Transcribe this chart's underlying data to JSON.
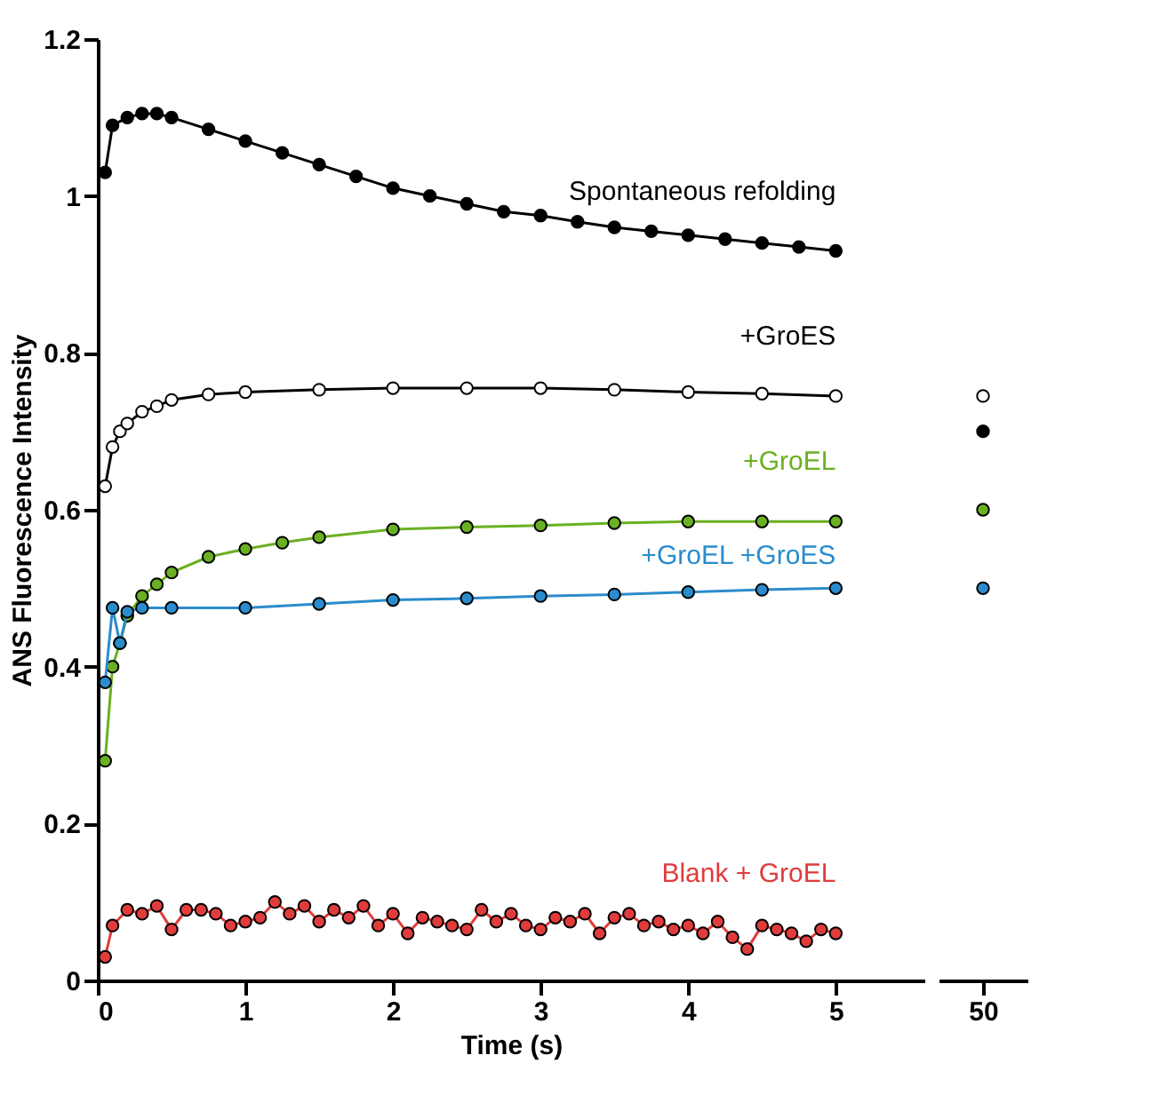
{
  "chart_data": [
    {
      "type": "line",
      "xlabel": "Time (s)",
      "ylabel": "ANS Fluorescence Intensity",
      "xlim": [
        0,
        5.6
      ],
      "xticks": [
        0,
        1,
        2,
        3,
        4,
        5
      ],
      "ylim": [
        0,
        1.2
      ],
      "yticks": [
        0,
        0.2,
        0.4,
        0.6,
        0.8,
        1,
        1.2
      ],
      "marker": "circle",
      "line_style": "solid",
      "grid": false,
      "series": [
        {
          "name": "Spontaneous refolding",
          "color": "#000000",
          "x": [
            0.05,
            0.1,
            0.2,
            0.3,
            0.4,
            0.5,
            0.75,
            1,
            1.25,
            1.5,
            1.75,
            2,
            2.25,
            2.5,
            2.75,
            3,
            3.25,
            3.5,
            3.75,
            4,
            4.25,
            4.5,
            4.75,
            5
          ],
          "values": [
            1.03,
            1.09,
            1.1,
            1.105,
            1.105,
            1.1,
            1.085,
            1.07,
            1.055,
            1.04,
            1.025,
            1.01,
            1.0,
            0.99,
            0.98,
            0.975,
            0.967,
            0.96,
            0.955,
            0.95,
            0.945,
            0.94,
            0.935,
            0.93
          ]
        },
        {
          "name": "+GroES",
          "color": "#ffffff",
          "x": [
            0.05,
            0.1,
            0.15,
            0.2,
            0.3,
            0.4,
            0.5,
            0.75,
            1,
            1.5,
            2,
            2.5,
            3,
            3.5,
            4,
            4.5,
            5
          ],
          "values": [
            0.63,
            0.68,
            0.7,
            0.71,
            0.725,
            0.732,
            0.74,
            0.747,
            0.75,
            0.753,
            0.755,
            0.755,
            0.755,
            0.753,
            0.75,
            0.748,
            0.745
          ]
        },
        {
          "name": "+GroEL",
          "color": "#6ab023",
          "x": [
            0.05,
            0.1,
            0.15,
            0.2,
            0.3,
            0.4,
            0.5,
            0.75,
            1,
            1.25,
            1.5,
            2,
            2.5,
            3,
            3.5,
            4,
            4.5,
            5
          ],
          "values": [
            0.28,
            0.4,
            0.43,
            0.465,
            0.49,
            0.505,
            0.52,
            0.54,
            0.55,
            0.558,
            0.565,
            0.575,
            0.578,
            0.58,
            0.583,
            0.585,
            0.585,
            0.585
          ]
        },
        {
          "name": "+GroEL +GroES",
          "color": "#2a8ccc",
          "x": [
            0.05,
            0.1,
            0.15,
            0.2,
            0.3,
            0.5,
            1,
            1.5,
            2,
            2.5,
            3,
            3.5,
            4,
            4.5,
            5
          ],
          "values": [
            0.38,
            0.475,
            0.43,
            0.47,
            0.475,
            0.475,
            0.475,
            0.48,
            0.485,
            0.487,
            0.49,
            0.492,
            0.495,
            0.498,
            0.5
          ]
        },
        {
          "name": "Blank + GroEL",
          "color": "#e03c3c",
          "x": [
            0.05,
            0.1,
            0.2,
            0.3,
            0.4,
            0.5,
            0.6,
            0.7,
            0.8,
            0.9,
            1.0,
            1.1,
            1.2,
            1.3,
            1.4,
            1.5,
            1.6,
            1.7,
            1.8,
            1.9,
            2.0,
            2.1,
            2.2,
            2.3,
            2.4,
            2.5,
            2.6,
            2.7,
            2.8,
            2.9,
            3.0,
            3.1,
            3.2,
            3.3,
            3.4,
            3.5,
            3.6,
            3.7,
            3.8,
            3.9,
            4.0,
            4.1,
            4.2,
            4.3,
            4.4,
            4.5,
            4.6,
            4.7,
            4.8,
            4.9,
            5.0
          ],
          "values": [
            0.03,
            0.07,
            0.09,
            0.085,
            0.095,
            0.065,
            0.09,
            0.09,
            0.085,
            0.07,
            0.075,
            0.08,
            0.1,
            0.085,
            0.095,
            0.075,
            0.09,
            0.08,
            0.095,
            0.07,
            0.085,
            0.06,
            0.08,
            0.075,
            0.07,
            0.065,
            0.09,
            0.075,
            0.085,
            0.07,
            0.065,
            0.08,
            0.075,
            0.085,
            0.06,
            0.08,
            0.085,
            0.07,
            0.075,
            0.065,
            0.07,
            0.06,
            0.075,
            0.055,
            0.04,
            0.07,
            0.065,
            0.06,
            0.05,
            0.065,
            0.06
          ]
        }
      ]
    },
    {
      "type": "line",
      "categories": [
        "50"
      ],
      "ylim": [
        0,
        1.2
      ],
      "tick_labels": "x",
      "marker": "circle",
      "grid": false,
      "series": [
        {
          "color": "#000000",
          "values": [
            0.7
          ]
        },
        {
          "color": "#ffffff",
          "values": [
            0.745
          ]
        },
        {
          "color": "#6ab023",
          "values": [
            0.6
          ]
        },
        {
          "color": "#2a8ccc",
          "values": [
            0.5
          ]
        }
      ]
    }
  ]
}
